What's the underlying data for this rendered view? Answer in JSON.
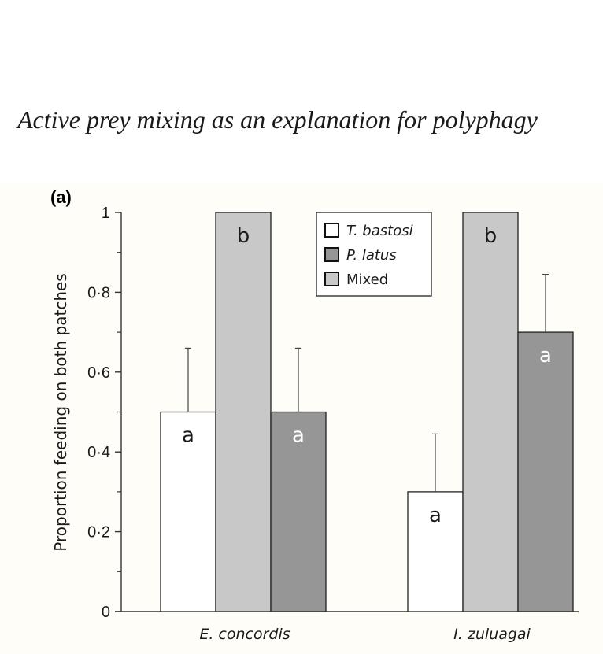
{
  "header": {
    "running_title": "Active prey mixing as an explanation for polyphagy"
  },
  "chart_data": {
    "type": "bar",
    "panel_label": "(a)",
    "title": "",
    "xlabel": "",
    "ylabel": "Proportion feeding on both patches",
    "ylim": [
      0,
      1
    ],
    "y_ticks": [
      0,
      0.2,
      0.4,
      0.6,
      0.8,
      1
    ],
    "y_tick_labels": [
      "0",
      "0·2",
      "0·4",
      "0·6",
      "0·8",
      "1"
    ],
    "y_minor_ticks": [
      0.1,
      0.3,
      0.5,
      0.7,
      0.9
    ],
    "categories": [
      "E. concordis",
      "I. zuluagai"
    ],
    "series": [
      {
        "name": "T. bastosi",
        "color": "#ffffff",
        "values": [
          0.5,
          0.3
        ],
        "error": [
          0.16,
          0.145
        ],
        "labels": [
          "a",
          "a"
        ],
        "label_color": "#1a1a1a"
      },
      {
        "name": "Mixed",
        "color": "#c8c8c8",
        "values": [
          1.0,
          1.0
        ],
        "error": [
          0,
          0
        ],
        "labels": [
          "b",
          "b"
        ],
        "label_color": "#1a1a1a"
      },
      {
        "name": "P. latus",
        "color": "#969696",
        "values": [
          0.5,
          0.7
        ],
        "error": [
          0.16,
          0.145
        ],
        "labels": [
          "a",
          "a"
        ],
        "label_color": "#ffffff"
      }
    ],
    "legend": {
      "position": "top-center",
      "entries": [
        {
          "name": "T. bastosi",
          "color": "#ffffff",
          "italic": true
        },
        {
          "name": "P. latus",
          "color": "#969696",
          "italic": true
        },
        {
          "name": "Mixed",
          "color": "#c8c8c8",
          "italic": false
        }
      ]
    },
    "grid": false
  }
}
